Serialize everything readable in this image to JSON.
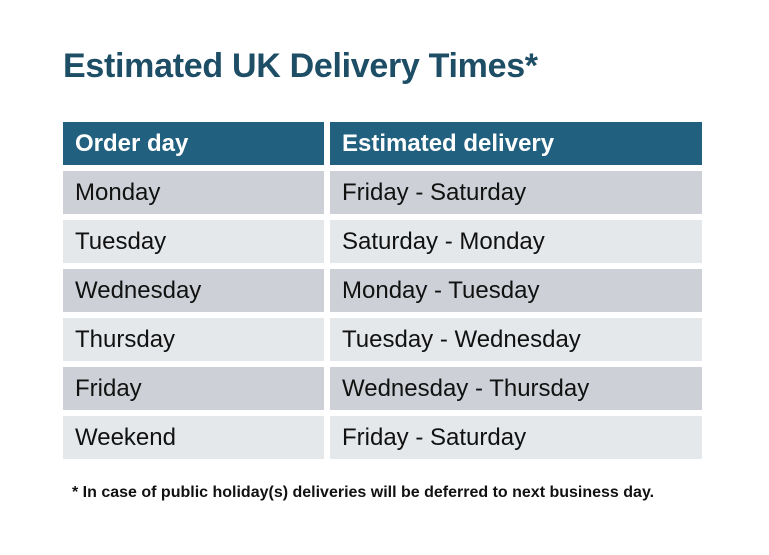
{
  "title": "Estimated UK Delivery Times*",
  "table": {
    "headers": [
      "Order day",
      "Estimated delivery"
    ],
    "rows": [
      [
        "Monday",
        "Friday - Saturday"
      ],
      [
        "Tuesday",
        "Saturday - Monday"
      ],
      [
        "Wednesday",
        "Monday - Tuesday"
      ],
      [
        "Thursday",
        "Tuesday - Wednesday"
      ],
      [
        "Friday",
        "Wednesday - Thursday"
      ],
      [
        "Weekend",
        "Friday - Saturday"
      ]
    ]
  },
  "footnote": "* In case of public holiday(s) deliveries will be deferred to next business day.",
  "colors": {
    "title_color": "#1E4D66",
    "header_bg": "#21607F",
    "header_text": "#FFFFFF",
    "row_odd_bg": "#CDD1D7",
    "row_even_bg": "#E5E8EB",
    "cell_text": "#111111",
    "page_bg": "#FFFFFF"
  }
}
